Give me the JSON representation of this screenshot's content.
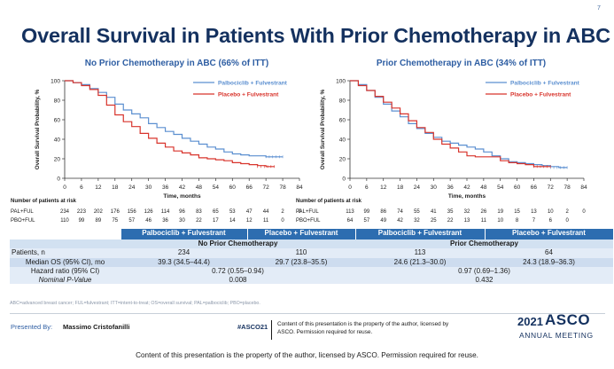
{
  "page_number": "7",
  "title": "Overall Survival in Patients With Prior Chemotherapy in ABC",
  "colors": {
    "blue_series": "#5b8fd0",
    "red_series": "#d8342c",
    "title": "#14315f",
    "header_blue": "#2d6db0"
  },
  "charts": [
    {
      "heading": "No Prior Chemotherapy in ABC (66% of ITT)",
      "risk_header": "Number of patients at risk",
      "risk_rows": [
        {
          "label": "PAL+FUL",
          "values": [
            "234",
            "223",
            "202",
            "176",
            "156",
            "126",
            "114",
            "96",
            "83",
            "65",
            "53",
            "47",
            "44",
            "2",
            "0"
          ]
        },
        {
          "label": "PBO+FUL",
          "values": [
            "110",
            "99",
            "89",
            "75",
            "57",
            "46",
            "36",
            "30",
            "22",
            "17",
            "14",
            "12",
            "11",
            "0"
          ]
        }
      ]
    },
    {
      "heading": "Prior Chemotherapy in ABC (34% of ITT)",
      "risk_header": "Number of patients at risk",
      "risk_rows": [
        {
          "label": "PAL+FUL",
          "values": [
            "113",
            "99",
            "86",
            "74",
            "55",
            "41",
            "35",
            "32",
            "26",
            "19",
            "15",
            "13",
            "10",
            "2",
            "0"
          ]
        },
        {
          "label": "PBO+FUL",
          "values": [
            "64",
            "57",
            "49",
            "42",
            "32",
            "25",
            "22",
            "13",
            "11",
            "10",
            "8",
            "7",
            "6",
            "0"
          ]
        }
      ]
    }
  ],
  "chart_data": [
    {
      "type": "line",
      "title": "No Prior Chemotherapy in ABC (66% of ITT)",
      "xlabel": "Time, months",
      "ylabel": "Overall Survival Probability, %",
      "xlim": [
        0,
        84
      ],
      "ylim": [
        0,
        100
      ],
      "xticks": [
        0,
        6,
        12,
        18,
        24,
        30,
        36,
        42,
        48,
        54,
        60,
        66,
        72,
        78,
        84
      ],
      "yticks": [
        0,
        20,
        40,
        60,
        80,
        100
      ],
      "legend": "top-right",
      "series": [
        {
          "name": "Palbociclib + Fulvestrant",
          "color": "#5b8fd0",
          "x": [
            0,
            3,
            6,
            9,
            12,
            15,
            18,
            21,
            24,
            27,
            30,
            33,
            36,
            39,
            42,
            45,
            48,
            51,
            54,
            57,
            60,
            63,
            66,
            69,
            72,
            75,
            78
          ],
          "y": [
            100,
            98,
            96,
            92,
            88,
            83,
            76,
            70,
            66,
            62,
            56,
            52,
            48,
            45,
            41,
            38,
            35,
            32,
            30,
            27,
            25,
            24,
            23,
            23,
            22,
            22,
            22
          ]
        },
        {
          "name": "Placebo + Fulvestrant",
          "color": "#d8342c",
          "x": [
            0,
            3,
            6,
            9,
            12,
            15,
            18,
            21,
            24,
            27,
            30,
            33,
            36,
            39,
            42,
            45,
            48,
            51,
            54,
            57,
            60,
            63,
            66,
            69,
            72,
            75
          ],
          "y": [
            100,
            98,
            95,
            91,
            85,
            75,
            65,
            58,
            53,
            46,
            41,
            36,
            32,
            28,
            26,
            24,
            21,
            20,
            19,
            18,
            16,
            15,
            14,
            13,
            12,
            12
          ]
        }
      ]
    },
    {
      "type": "line",
      "title": "Prior Chemotherapy in ABC (34% of ITT)",
      "xlabel": "Time, months",
      "ylabel": "Overall Survival Probability, %",
      "xlim": [
        0,
        84
      ],
      "ylim": [
        0,
        100
      ],
      "xticks": [
        0,
        6,
        12,
        18,
        24,
        30,
        36,
        42,
        48,
        54,
        60,
        66,
        72,
        78,
        84
      ],
      "yticks": [
        0,
        20,
        40,
        60,
        80,
        100
      ],
      "legend": "top-right",
      "series": [
        {
          "name": "Palbociclib + Fulvestrant",
          "color": "#5b8fd0",
          "x": [
            0,
            3,
            6,
            9,
            12,
            15,
            18,
            21,
            24,
            27,
            30,
            33,
            36,
            39,
            42,
            45,
            48,
            51,
            54,
            57,
            60,
            63,
            66,
            69,
            72,
            75,
            78
          ],
          "y": [
            100,
            96,
            90,
            83,
            76,
            69,
            63,
            56,
            51,
            46,
            42,
            38,
            36,
            34,
            32,
            30,
            27,
            23,
            20,
            17,
            16,
            15,
            14,
            13,
            12,
            11,
            11
          ]
        },
        {
          "name": "Placebo + Fulvestrant",
          "color": "#d8342c",
          "x": [
            0,
            3,
            6,
            9,
            12,
            15,
            18,
            21,
            24,
            27,
            30,
            33,
            36,
            39,
            42,
            45,
            48,
            51,
            54,
            57,
            60,
            63,
            66,
            69,
            72
          ],
          "y": [
            100,
            95,
            90,
            84,
            78,
            72,
            66,
            59,
            52,
            47,
            40,
            35,
            31,
            27,
            23,
            22,
            22,
            22,
            18,
            16,
            15,
            14,
            12,
            12,
            12
          ]
        }
      ]
    }
  ],
  "table": {
    "header_cells": [
      "Palbociclib + Fulvestrant",
      "Placebo + Fulvestrant",
      "Palbociclib + Fulvestrant",
      "Placebo + Fulvestrant"
    ],
    "group_no_prior": "No Prior Chemotherapy",
    "group_prior": "Prior Chemotherapy",
    "patients_label": "Patients, n",
    "patients": [
      "234",
      "110",
      "113",
      "64"
    ],
    "median_label": "Median OS (95% CI), mo",
    "median": [
      "39.3 (34.5–44.4)",
      "29.7 (23.8–35.5)",
      "24.6 (21.3–30.0)",
      "24.3 (18.9–36.3)"
    ],
    "hr_label": "Hazard ratio (95% CI)",
    "pvalue_label": "Nominal P-Value",
    "hr_no_prior": "0.72 (0.55–0.94)",
    "p_no_prior": "0.008",
    "hr_prior": "0.97 (0.69–1.36)",
    "p_prior": "0.432"
  },
  "footnote": "ABC=advanced breast cancer; FUL=fulvestrant; ITT=intent-to-treat; OS=overall survival; PAL=palbociclib; PBO=placebo.",
  "footer": {
    "presented_by_label": "Presented By:",
    "presenter": "Massimo Cristofanilli",
    "hashtag": "#ASCO21",
    "copyright_box": "Content of this presentation is the property of the author, licensed by ASCO. Permission required for reuse.",
    "asco_year": "2021",
    "asco_word": "ASCO",
    "asco_sub": "ANNUAL MEETING"
  },
  "bottom_notice": "Content of this presentation is the property of the author, licensed by ASCO. Permission required for reuse."
}
